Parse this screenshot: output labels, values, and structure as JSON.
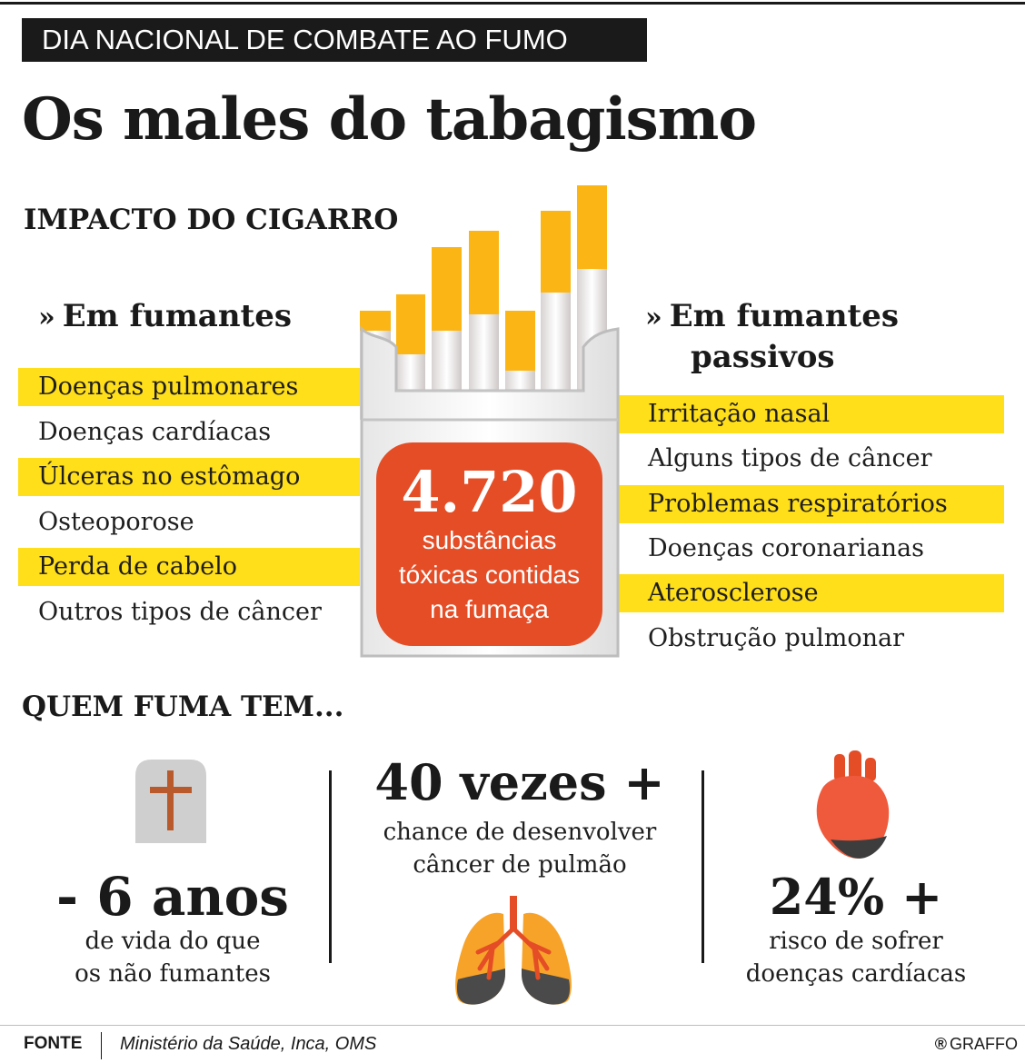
{
  "kicker": "DIA NACIONAL DE COMBATE AO FUMO",
  "title": "Os males do tabagismo",
  "impact_title": "IMPACTO DO CIGARRO",
  "smokers": {
    "heading": "Em fumantes",
    "items": [
      {
        "label": "Doenças pulmonares",
        "highlighted": true
      },
      {
        "label": "Doenças cardíacas",
        "highlighted": false
      },
      {
        "label": "Úlceras no estômago",
        "highlighted": true
      },
      {
        "label": "Osteoporose",
        "highlighted": false
      },
      {
        "label": "Perda de cabelo",
        "highlighted": true
      },
      {
        "label": "Outros tipos de câncer",
        "highlighted": false
      }
    ]
  },
  "passive": {
    "heading_line1": "Em fumantes",
    "heading_line2": "passivos",
    "items": [
      {
        "label": "Irritação nasal",
        "highlighted": true
      },
      {
        "label": "Alguns tipos de câncer",
        "highlighted": false
      },
      {
        "label": "Problemas respiratórios",
        "highlighted": true
      },
      {
        "label": "Doenças coronarianas",
        "highlighted": false
      },
      {
        "label": "Aterosclerose",
        "highlighted": true
      },
      {
        "label": "Obstrução pulmonar",
        "highlighted": false
      }
    ]
  },
  "toxic": {
    "number": "4.720",
    "line1": "substâncias",
    "line2": "tóxicas contidas",
    "line3": "na fumaça"
  },
  "who_smokes_title": "QUEM FUMA TEM...",
  "stats": [
    {
      "big": "- 6 anos",
      "line1": "de vida do que",
      "line2": "os não fumantes",
      "icon": "tombstone-icon"
    },
    {
      "big": "40 vezes +",
      "line1": "chance de desenvolver",
      "line2": "câncer de pulmão",
      "icon": "lungs-icon"
    },
    {
      "big": "24% +",
      "line1": "risco de sofrer",
      "line2": "doenças cardíacas",
      "icon": "heart-icon"
    }
  ],
  "footer": {
    "label": "FONTE",
    "source": "Ministério da Saúde, Inca, OMS",
    "brand": "GRAFFO",
    "brand_mark": "®"
  },
  "colors": {
    "highlight": "#ffde1a",
    "accent_orange": "#e44d26",
    "filter_yellow": "#fbb615",
    "dark": "#1a1a1a"
  }
}
